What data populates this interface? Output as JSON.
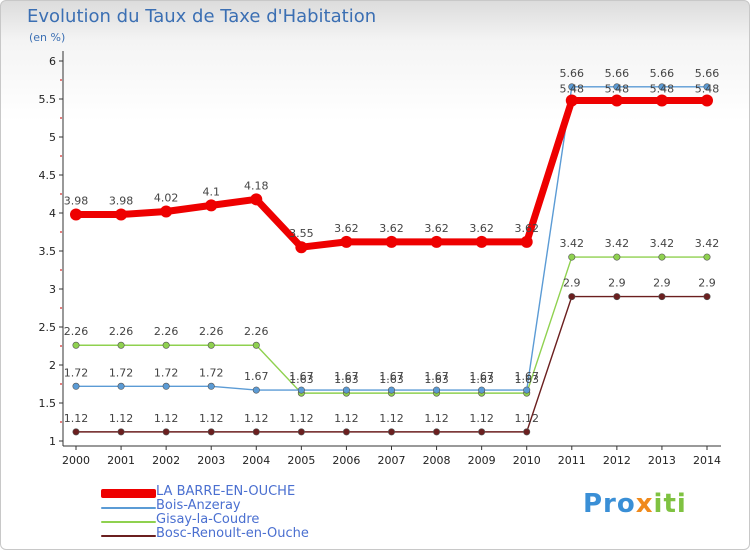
{
  "chart_data": {
    "type": "line",
    "title": "Evolution du Taux de Taxe d'Habitation",
    "unit_label": "(en %)",
    "x": [
      "2000",
      "2001",
      "2002",
      "2003",
      "2004",
      "2005",
      "2006",
      "2007",
      "2008",
      "2009",
      "2010",
      "2011",
      "2012",
      "2013",
      "2014"
    ],
    "ylim": [
      1,
      6
    ],
    "yticks": [
      "1",
      "1.5",
      "2",
      "2.5",
      "3",
      "3.5",
      "4",
      "4.5",
      "5",
      "5.5",
      "6"
    ],
    "grid": false,
    "legend_position": "bottom-left",
    "series": [
      {
        "name": "LA BARRE-EN-OUCHE",
        "color": "#ee0000",
        "values": [
          3.98,
          3.98,
          4.02,
          4.1,
          4.18,
          3.55,
          3.62,
          3.62,
          3.62,
          3.62,
          3.62,
          5.48,
          5.48,
          5.48,
          5.48
        ],
        "labels": [
          "3.98",
          "3.98",
          "4.02",
          "4.1",
          "4.18",
          "3.55",
          "3.62",
          "3.62",
          "3.62",
          "3.62",
          "3.62",
          "5.48",
          "5.48",
          "5.48",
          "5.48"
        ]
      },
      {
        "name": "Bois-Anzeray",
        "color": "#5b9bd5",
        "values": [
          1.72,
          1.72,
          1.72,
          1.72,
          1.67,
          1.67,
          1.67,
          1.67,
          1.67,
          1.67,
          1.67,
          5.66,
          5.66,
          5.66,
          5.66
        ],
        "labels": [
          "1.72",
          "1.72",
          "1.72",
          "1.72",
          "1.67",
          "1.67",
          "1.67",
          "1.67",
          "1.67",
          "1.67",
          "1.67",
          "5.66",
          "5.66",
          "5.66",
          "5.66"
        ]
      },
      {
        "name": "Gisay-la-Coudre",
        "color": "#8fd14f",
        "values": [
          2.26,
          2.26,
          2.26,
          2.26,
          2.26,
          1.63,
          1.63,
          1.63,
          1.63,
          1.63,
          1.63,
          3.42,
          3.42,
          3.42,
          3.42
        ],
        "labels": [
          "2.26",
          "2.26",
          "2.26",
          "2.26",
          "2.26",
          "1.63",
          "1.63",
          "1.63",
          "1.63",
          "1.63",
          "1.63",
          "3.42",
          "3.42",
          "3.42",
          "3.42"
        ]
      },
      {
        "name": "Bosc-Renoult-en-Ouche",
        "color": "#6b1f1f",
        "values": [
          1.12,
          1.12,
          1.12,
          1.12,
          1.12,
          1.12,
          1.12,
          1.12,
          1.12,
          1.12,
          1.12,
          2.9,
          2.9,
          2.9,
          2.9
        ],
        "labels": [
          "1.12",
          "1.12",
          "1.12",
          "1.12",
          "1.12",
          "1.12",
          "1.12",
          "1.12",
          "1.12",
          "1.12",
          "1.12",
          "2.9",
          "2.9",
          "2.9",
          "2.9"
        ]
      }
    ]
  },
  "brand": {
    "prefix": "Pro",
    "x": "x",
    "suffix": "iti"
  }
}
